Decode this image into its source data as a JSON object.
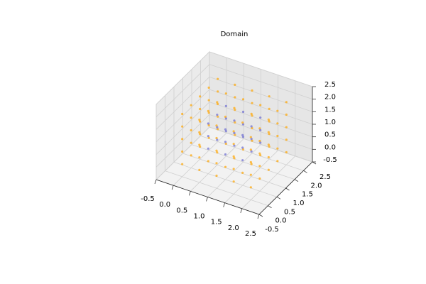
{
  "chart_data": {
    "type": "scatter3d",
    "title": "Domain",
    "xlim": [
      -0.5,
      2.5
    ],
    "ylim": [
      -0.5,
      2.5
    ],
    "zlim": [
      -0.5,
      2.5
    ],
    "xticks": [
      -0.5,
      {
        "value": 0,
        "label": "0.0"
      },
      0.5,
      {
        "value": 1,
        "label": "1.0"
      },
      1.5,
      {
        "value": 2,
        "label": "2.0"
      },
      2.5
    ],
    "yticks": [
      -0.5,
      {
        "value": 0,
        "label": "0.0"
      },
      0.5,
      {
        "value": 1,
        "label": "1.0"
      },
      1.5,
      {
        "value": 2,
        "label": "2.0"
      },
      2.5
    ],
    "zticks": [
      -0.5,
      {
        "value": 0,
        "label": "0.0"
      },
      0.5,
      {
        "value": 1,
        "label": "1.0"
      },
      1.5,
      {
        "value": 2,
        "label": "2.0"
      },
      2.5
    ],
    "grid": true,
    "series": [
      {
        "color": "#ffa500",
        "x": [
          0,
          0,
          0,
          0,
          0,
          0,
          0,
          0,
          0,
          0,
          0,
          0,
          0,
          0,
          0,
          0,
          0,
          0,
          0,
          0,
          0,
          0,
          0,
          0,
          0,
          0.5,
          0.5,
          0.5,
          0.5,
          0.5,
          0.5,
          0.5,
          0.5,
          0.5,
          0.5,
          0.5,
          0.5,
          0.5,
          0.5,
          0.5,
          0.5,
          1,
          1,
          1,
          1,
          1,
          1,
          1,
          1,
          1,
          1,
          1,
          1,
          1,
          1,
          1,
          1,
          1.5,
          1.5,
          1.5,
          1.5,
          1.5,
          1.5,
          1.5,
          1.5,
          1.5,
          1.5,
          1.5,
          1.5,
          1.5,
          1.5,
          1.5,
          1.5,
          2,
          2,
          2,
          2,
          2,
          2,
          2,
          2,
          2,
          2,
          2,
          2,
          2,
          2,
          2,
          2,
          2,
          2,
          2,
          2,
          2,
          2,
          2,
          2,
          2
        ],
        "y": [
          0,
          0,
          0,
          0,
          0,
          0.5,
          0.5,
          0.5,
          0.5,
          0.5,
          1,
          1,
          1,
          1,
          1,
          1.5,
          1.5,
          1.5,
          1.5,
          1.5,
          2,
          2,
          2,
          2,
          2,
          0,
          0,
          0,
          0,
          0,
          0.5,
          0.5,
          1,
          1,
          1.5,
          1.5,
          2,
          2,
          2,
          2,
          2,
          0,
          0,
          0,
          0,
          0,
          0.5,
          0.5,
          1,
          1,
          1.5,
          1.5,
          2,
          2,
          2,
          2,
          2,
          0,
          0,
          0,
          0,
          0,
          0.5,
          0.5,
          1,
          1,
          1.5,
          1.5,
          2,
          2,
          2,
          2,
          2,
          0,
          0,
          0,
          0,
          0,
          0.5,
          0.5,
          0.5,
          0.5,
          0.5,
          1,
          1,
          1,
          1,
          1,
          1.5,
          1.5,
          1.5,
          1.5,
          1.5,
          2,
          2,
          2,
          2,
          2
        ],
        "z": [
          0,
          0.5,
          1,
          1.5,
          2,
          0,
          0.5,
          1,
          1.5,
          2,
          0,
          0.5,
          1,
          1.5,
          2,
          0,
          0.5,
          1,
          1.5,
          2,
          0,
          0.5,
          1,
          1.5,
          2,
          0,
          0.5,
          1,
          1.5,
          2,
          0,
          2,
          0,
          2,
          0,
          2,
          0,
          0.5,
          1,
          1.5,
          2,
          0,
          0.5,
          1,
          1.5,
          2,
          0,
          2,
          0,
          2,
          0,
          2,
          0,
          0.5,
          1,
          1.5,
          2,
          0,
          0.5,
          1,
          1.5,
          2,
          0,
          2,
          0,
          2,
          0,
          2,
          0,
          0.5,
          1,
          1.5,
          2,
          0,
          0.5,
          1,
          1.5,
          2,
          0,
          0.5,
          1,
          1.5,
          2,
          0,
          0.5,
          1,
          1.5,
          2,
          0,
          0.5,
          1,
          1.5,
          2,
          0,
          0.5,
          1,
          1.5,
          2
        ]
      },
      {
        "color": "#6a6ad0",
        "x": [
          0.5,
          0.5,
          0.5,
          0.5,
          0.5,
          0.5,
          0.5,
          0.5,
          0.5,
          1,
          1,
          1,
          1,
          1,
          1,
          1,
          1,
          1,
          1.5,
          1.5,
          1.5,
          1.5,
          1.5,
          1.5,
          1.5,
          1.5,
          1.5
        ],
        "y": [
          0.5,
          0.5,
          0.5,
          1,
          1,
          1,
          1.5,
          1.5,
          1.5,
          0.5,
          0.5,
          0.5,
          1,
          1,
          1,
          1.5,
          1.5,
          1.5,
          0.5,
          0.5,
          0.5,
          1,
          1,
          1,
          1.5,
          1.5,
          1.5
        ],
        "z": [
          0.5,
          1,
          1.5,
          0.5,
          1,
          1.5,
          0.5,
          1,
          1.5,
          0.5,
          1,
          1.5,
          0.5,
          1,
          1.5,
          0.5,
          1,
          1.5,
          0.5,
          1,
          1.5,
          0.5,
          1,
          1.5,
          0.5,
          1,
          1.5
        ]
      }
    ]
  }
}
